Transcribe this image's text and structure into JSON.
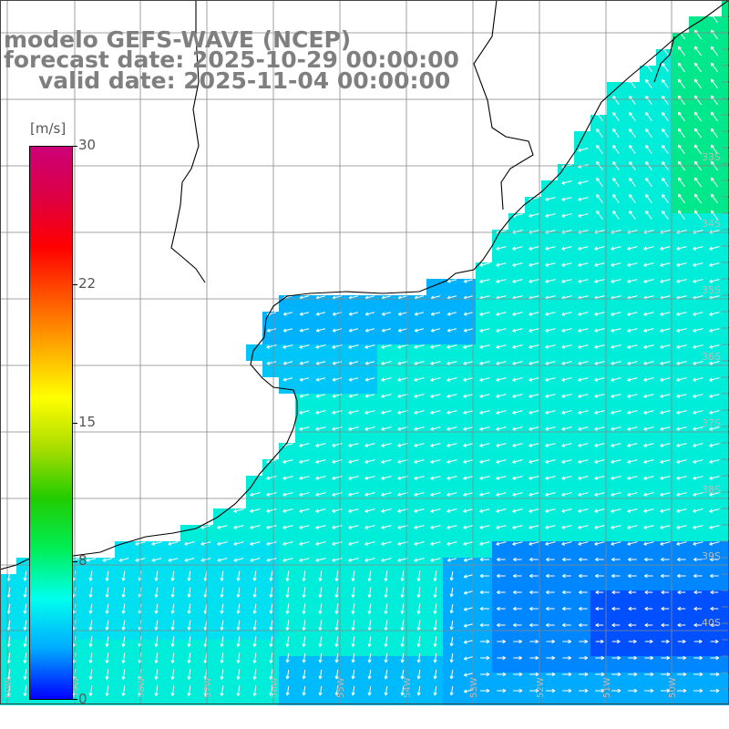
{
  "title": {
    "model": "modelo GEFS-WAVE (NCEP)",
    "forecast": "forecast date: 2025-10-29 00:00:00",
    "valid": "valid date: 2025-11-04 00:00:00"
  },
  "colorbar": {
    "unit": "[m/s]",
    "min": 0,
    "max": 30,
    "tick_labels": [
      "30",
      "22",
      "15",
      "8",
      "0"
    ],
    "tick_values": [
      30,
      22.5,
      15,
      7.5,
      0
    ],
    "colors": [
      "#0000ff",
      "#00aaff",
      "#00ffee",
      "#00ee55",
      "#22cc00",
      "#aadd00",
      "#ffff00",
      "#ffaa00",
      "#ff5500",
      "#ff0000",
      "#dd0044",
      "#cc0077"
    ]
  },
  "latitude_labels": [
    "33S",
    "34S",
    "35S",
    "36S",
    "37S",
    "38S",
    "39S",
    "40S"
  ],
  "longitude_labels": [
    "60W",
    "59W",
    "58W",
    "57W",
    "56W",
    "55W",
    "54W",
    "53W",
    "52W",
    "51W",
    "50W"
  ],
  "icons": {
    "wind_vector": "arrow-icon"
  }
}
